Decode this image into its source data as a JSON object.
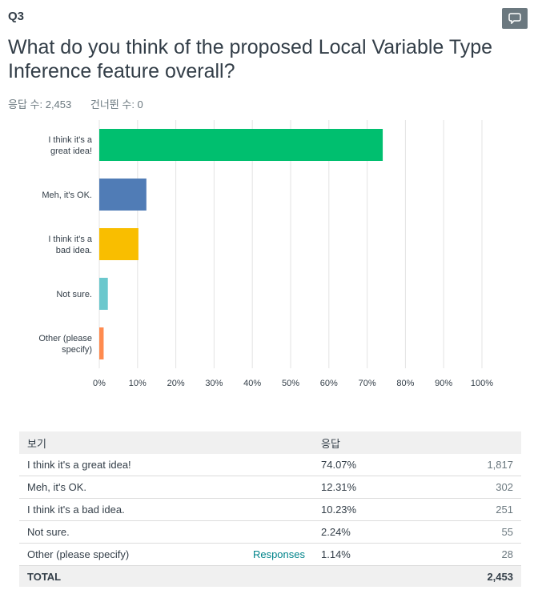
{
  "question": {
    "number": "Q3",
    "title": "What do you think of the proposed Local Variable Type Inference feature overall?",
    "answered": "응답 수: 2,453",
    "skipped": "건너뛴 수: 0"
  },
  "chart_data": {
    "type": "bar",
    "orientation": "horizontal",
    "categories": [
      "I think it's a great idea!",
      "Meh, it's OK.",
      "I think it's a bad idea.",
      "Not sure.",
      "Other (please specify)"
    ],
    "category_labels": [
      [
        "I think it's a",
        "great idea!"
      ],
      [
        "Meh, it's OK."
      ],
      [
        "I think it's a",
        "bad idea."
      ],
      [
        "Not sure."
      ],
      [
        "Other (please",
        "specify)"
      ]
    ],
    "values": [
      74.07,
      12.31,
      10.23,
      2.24,
      1.14
    ],
    "colors": [
      "#00bf6f",
      "#507cb6",
      "#f9be00",
      "#6bc8cd",
      "#ff8b4f"
    ],
    "xlim": [
      0,
      100
    ],
    "x_ticks": [
      "0%",
      "10%",
      "20%",
      "30%",
      "40%",
      "50%",
      "60%",
      "70%",
      "80%",
      "90%",
      "100%"
    ],
    "grid": true
  },
  "table": {
    "headers": [
      "보기",
      "응답"
    ],
    "rows": [
      {
        "choice": "I think it's a great idea!",
        "link": "",
        "percent": "74.07%",
        "count": "1,817"
      },
      {
        "choice": "Meh, it's OK.",
        "link": "",
        "percent": "12.31%",
        "count": "302"
      },
      {
        "choice": "I think it's a bad idea.",
        "link": "",
        "percent": "10.23%",
        "count": "251"
      },
      {
        "choice": "Not sure.",
        "link": "",
        "percent": "2.24%",
        "count": "55"
      },
      {
        "choice": "Other (please specify)",
        "link": "Responses",
        "percent": "1.14%",
        "count": "28"
      }
    ],
    "total_label": "TOTAL",
    "total_count": "2,453"
  }
}
